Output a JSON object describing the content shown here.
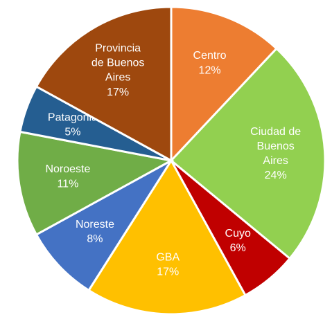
{
  "chart_data": {
    "type": "pie",
    "categories": [
      "Centro",
      "Ciudad de Buenos Aires",
      "Cuyo",
      "GBA",
      "Noreste",
      "Noroeste",
      "Patagonia",
      "Provincia de Buenos Aires"
    ],
    "values": [
      12,
      24,
      6,
      17,
      8,
      11,
      5,
      17
    ],
    "value_labels": [
      "12%",
      "24%",
      "6%",
      "17%",
      "8%",
      "11%",
      "5%",
      "17%"
    ],
    "colors": [
      "#ED7D31",
      "#92D050",
      "#C00000",
      "#FFC000",
      "#4472C4",
      "#70AD47",
      "#255E91",
      "#9E480E"
    ]
  }
}
